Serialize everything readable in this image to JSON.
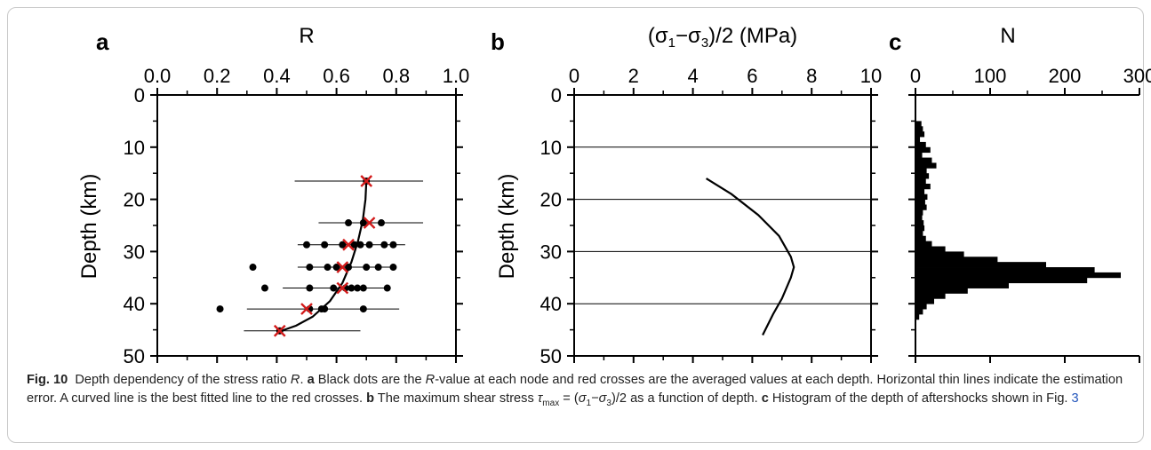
{
  "chart_data": [
    {
      "panel": "a",
      "type": "scatter",
      "xlabel": "R",
      "ylabel": "Depth (km)",
      "xlim": [
        0.0,
        1.0
      ],
      "ylim": [
        0,
        50
      ],
      "y_inverted": true,
      "x_axis_position": "top",
      "xticks": [
        "0.0",
        "0.2",
        "0.4",
        "0.6",
        "0.8",
        "1.0"
      ],
      "yticks": [
        "0",
        "10",
        "20",
        "30",
        "40",
        "50"
      ],
      "node_points": [
        {
          "x": 0.7,
          "y": 16.5
        },
        {
          "x": 0.64,
          "y": 24.5
        },
        {
          "x": 0.69,
          "y": 24.5
        },
        {
          "x": 0.75,
          "y": 24.5
        },
        {
          "x": 0.5,
          "y": 28.7
        },
        {
          "x": 0.56,
          "y": 28.7
        },
        {
          "x": 0.62,
          "y": 28.7
        },
        {
          "x": 0.66,
          "y": 28.7
        },
        {
          "x": 0.68,
          "y": 28.7
        },
        {
          "x": 0.71,
          "y": 28.7
        },
        {
          "x": 0.76,
          "y": 28.7
        },
        {
          "x": 0.79,
          "y": 28.7
        },
        {
          "x": 0.32,
          "y": 33.0
        },
        {
          "x": 0.51,
          "y": 33.0
        },
        {
          "x": 0.57,
          "y": 33.0
        },
        {
          "x": 0.6,
          "y": 33.0
        },
        {
          "x": 0.64,
          "y": 33.0
        },
        {
          "x": 0.7,
          "y": 33.0
        },
        {
          "x": 0.74,
          "y": 33.0
        },
        {
          "x": 0.79,
          "y": 33.0
        },
        {
          "x": 0.36,
          "y": 37.0
        },
        {
          "x": 0.51,
          "y": 37.0
        },
        {
          "x": 0.59,
          "y": 37.0
        },
        {
          "x": 0.63,
          "y": 37.0
        },
        {
          "x": 0.65,
          "y": 37.0
        },
        {
          "x": 0.67,
          "y": 37.0
        },
        {
          "x": 0.69,
          "y": 37.0
        },
        {
          "x": 0.77,
          "y": 37.0
        },
        {
          "x": 0.21,
          "y": 41.0
        },
        {
          "x": 0.51,
          "y": 41.0
        },
        {
          "x": 0.55,
          "y": 41.0
        },
        {
          "x": 0.56,
          "y": 41.0
        },
        {
          "x": 0.69,
          "y": 41.0
        },
        {
          "x": 0.41,
          "y": 45.2
        }
      ],
      "averaged_points": [
        {
          "x": 0.7,
          "y": 16.5
        },
        {
          "x": 0.71,
          "y": 24.5
        },
        {
          "x": 0.64,
          "y": 28.7
        },
        {
          "x": 0.62,
          "y": 33.0
        },
        {
          "x": 0.62,
          "y": 37.0
        },
        {
          "x": 0.5,
          "y": 41.0
        },
        {
          "x": 0.41,
          "y": 45.2
        }
      ],
      "error_bars": [
        {
          "y": 16.5,
          "xmin": 0.46,
          "xmax": 0.89
        },
        {
          "y": 24.5,
          "xmin": 0.54,
          "xmax": 0.89
        },
        {
          "y": 28.7,
          "xmin": 0.47,
          "xmax": 0.83
        },
        {
          "y": 33.0,
          "xmin": 0.47,
          "xmax": 0.79
        },
        {
          "y": 37.0,
          "xmin": 0.42,
          "xmax": 0.77
        },
        {
          "y": 41.0,
          "xmin": 0.3,
          "xmax": 0.81
        },
        {
          "y": 45.2,
          "xmin": 0.29,
          "xmax": 0.68
        }
      ],
      "fit_curve": [
        {
          "x": 0.7,
          "y": 16.5
        },
        {
          "x": 0.697,
          "y": 20.0
        },
        {
          "x": 0.688,
          "y": 24.0
        },
        {
          "x": 0.672,
          "y": 28.0
        },
        {
          "x": 0.65,
          "y": 32.0
        },
        {
          "x": 0.62,
          "y": 36.0
        },
        {
          "x": 0.578,
          "y": 39.5
        },
        {
          "x": 0.52,
          "y": 42.5
        },
        {
          "x": 0.465,
          "y": 44.2
        },
        {
          "x": 0.41,
          "y": 45.3
        }
      ]
    },
    {
      "panel": "b",
      "type": "line",
      "xlabel": "(σ₁−σ₃)/2 (MPa)",
      "ylabel": "Depth (km)",
      "xlim": [
        0,
        10
      ],
      "ylim": [
        0,
        50
      ],
      "y_inverted": true,
      "x_axis_position": "top",
      "xticks": [
        "0",
        "2",
        "4",
        "6",
        "8",
        "10"
      ],
      "yticks": [
        "0",
        "10",
        "20",
        "30",
        "40",
        "50"
      ],
      "gridlines_y": [
        10,
        20,
        30,
        40
      ],
      "curve": [
        {
          "x": 4.45,
          "y": 16
        },
        {
          "x": 5.3,
          "y": 19
        },
        {
          "x": 6.2,
          "y": 23
        },
        {
          "x": 6.9,
          "y": 27
        },
        {
          "x": 7.3,
          "y": 31
        },
        {
          "x": 7.4,
          "y": 33
        },
        {
          "x": 7.3,
          "y": 35
        },
        {
          "x": 7.0,
          "y": 39
        },
        {
          "x": 6.7,
          "y": 42
        },
        {
          "x": 6.35,
          "y": 46
        }
      ]
    },
    {
      "panel": "c",
      "type": "bar",
      "orientation": "horizontal",
      "xlabel": "N",
      "xlim": [
        0,
        300
      ],
      "ylim": [
        0,
        50
      ],
      "y_inverted": true,
      "x_axis_position": "top",
      "xticks": [
        "0",
        "100",
        "200",
        "300"
      ],
      "yticks": [
        "0",
        "10",
        "20",
        "30",
        "40",
        "50"
      ],
      "bin_width_km": 1,
      "bins": [
        {
          "y": 5,
          "n": 8
        },
        {
          "y": 6,
          "n": 10
        },
        {
          "y": 7,
          "n": 12
        },
        {
          "y": 8,
          "n": 6
        },
        {
          "y": 9,
          "n": 14
        },
        {
          "y": 10,
          "n": 20
        },
        {
          "y": 11,
          "n": 9
        },
        {
          "y": 12,
          "n": 22
        },
        {
          "y": 13,
          "n": 28
        },
        {
          "y": 14,
          "n": 15
        },
        {
          "y": 15,
          "n": 18
        },
        {
          "y": 16,
          "n": 14
        },
        {
          "y": 17,
          "n": 20
        },
        {
          "y": 18,
          "n": 12
        },
        {
          "y": 19,
          "n": 16
        },
        {
          "y": 20,
          "n": 13
        },
        {
          "y": 21,
          "n": 15
        },
        {
          "y": 22,
          "n": 10
        },
        {
          "y": 23,
          "n": 9
        },
        {
          "y": 24,
          "n": 11
        },
        {
          "y": 25,
          "n": 12
        },
        {
          "y": 26,
          "n": 10
        },
        {
          "y": 27,
          "n": 14
        },
        {
          "y": 28,
          "n": 22
        },
        {
          "y": 29,
          "n": 40
        },
        {
          "y": 30,
          "n": 65
        },
        {
          "y": 31,
          "n": 110
        },
        {
          "y": 32,
          "n": 175
        },
        {
          "y": 33,
          "n": 240
        },
        {
          "y": 34,
          "n": 275
        },
        {
          "y": 35,
          "n": 230
        },
        {
          "y": 36,
          "n": 125
        },
        {
          "y": 37,
          "n": 70
        },
        {
          "y": 38,
          "n": 40
        },
        {
          "y": 39,
          "n": 25
        },
        {
          "y": 40,
          "n": 15
        },
        {
          "y": 41,
          "n": 10
        },
        {
          "y": 42,
          "n": 5
        }
      ]
    }
  ],
  "panel_letters": {
    "a": "a",
    "b": "b",
    "c": "c"
  },
  "colors": {
    "point": "#000000",
    "cross": "#d21a1a",
    "axis": "#000000",
    "grid": "#000000",
    "bar": "#000000",
    "link": "#2255bb"
  },
  "caption": {
    "fig_label": "Fig. 10",
    "seg1": "Depth dependency of the stress ratio ",
    "r_italic": "R",
    "seg2": ". ",
    "a_label": "a",
    "seg3": " Black dots are the ",
    "r_italic2": "R",
    "seg4": "-value at each node and red crosses are the averaged values at each depth. Horizontal thin lines indicate the estimation error. A curved line is the best fitted line to the red crosses. ",
    "b_label": "b",
    "seg5": " The maximum shear stress ",
    "tau": "τ",
    "tau_sub": "max",
    "seg6": " = (",
    "s1": "σ",
    "s1_sub": "1",
    "seg7": "−",
    "s3": "σ",
    "s3_sub": "3",
    "seg8": ")/2 as a function of depth. ",
    "c_label": "c",
    "seg9": " Histogram of the depth of aftershocks shown in Fig. ",
    "fig_ref": "3"
  }
}
